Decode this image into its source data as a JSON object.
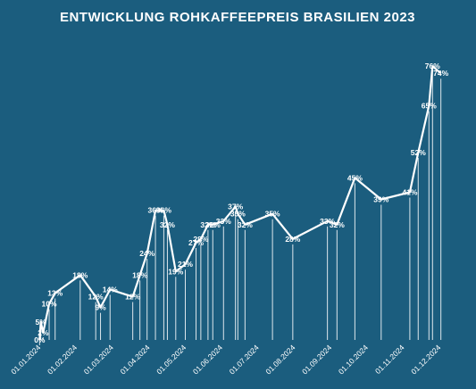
{
  "title": "ENTWICKLUNG ROHKAFFEEPREIS BRASILIEN 2023",
  "colors": {
    "background": "#1b5d7e",
    "line": "#ffffff",
    "text": "#ffffff"
  },
  "chart_data": {
    "type": "line",
    "title": "ENTWICKLUNG ROHKAFFEEPREIS BRASILIEN 2023",
    "xlabel": "",
    "ylabel": "",
    "ylim": [
      0,
      80
    ],
    "grid": false,
    "legend": "none",
    "x_tick_labels": [
      "01.01.2024",
      "01.02.2024",
      "01.03.2024",
      "01.04.2024",
      "01.05.2024",
      "01.06.2024",
      "01.07.2024",
      "01.08.2024",
      "01.09.2024",
      "01.10.2024",
      "01.11.2024",
      "01.12.2024"
    ],
    "points": [
      {
        "date": "2024-01-02",
        "value": 0,
        "label": "0%"
      },
      {
        "date": "2024-01-03",
        "value": 5,
        "label": "5%"
      },
      {
        "date": "2024-01-05",
        "value": 2,
        "label": "2%"
      },
      {
        "date": "2024-01-10",
        "value": 10,
        "label": "10%"
      },
      {
        "date": "2024-01-15",
        "value": 13,
        "label": "13%"
      },
      {
        "date": "2024-02-05",
        "value": 18,
        "label": "18%"
      },
      {
        "date": "2024-02-18",
        "value": 12,
        "label": "12%"
      },
      {
        "date": "2024-02-22",
        "value": 9,
        "label": "9%"
      },
      {
        "date": "2024-03-01",
        "value": 14,
        "label": "14%"
      },
      {
        "date": "2024-03-20",
        "value": 12,
        "label": "12%"
      },
      {
        "date": "2024-03-26",
        "value": 18,
        "label": "18%"
      },
      {
        "date": "2024-04-01",
        "value": 24,
        "label": "24%"
      },
      {
        "date": "2024-04-08",
        "value": 36,
        "label": "36%"
      },
      {
        "date": "2024-04-15",
        "value": 36,
        "label": "36%"
      },
      {
        "date": "2024-04-18",
        "value": 32,
        "label": "32%"
      },
      {
        "date": "2024-04-25",
        "value": 19,
        "label": "19%"
      },
      {
        "date": "2024-05-03",
        "value": 21,
        "label": "21%"
      },
      {
        "date": "2024-05-12",
        "value": 27,
        "label": "27%"
      },
      {
        "date": "2024-05-16",
        "value": 28,
        "label": "28%"
      },
      {
        "date": "2024-05-22",
        "value": 32,
        "label": "32%"
      },
      {
        "date": "2024-05-26",
        "value": 32,
        "label": "32%"
      },
      {
        "date": "2024-06-04",
        "value": 33,
        "label": "33%"
      },
      {
        "date": "2024-06-14",
        "value": 37,
        "label": "37%"
      },
      {
        "date": "2024-06-16",
        "value": 35,
        "label": "35%"
      },
      {
        "date": "2024-06-22",
        "value": 32,
        "label": "32%"
      },
      {
        "date": "2024-07-15",
        "value": 35,
        "label": "35%"
      },
      {
        "date": "2024-08-01",
        "value": 28,
        "label": "28%"
      },
      {
        "date": "2024-08-30",
        "value": 33,
        "label": "33%"
      },
      {
        "date": "2024-09-07",
        "value": 32,
        "label": "32%"
      },
      {
        "date": "2024-09-22",
        "value": 45,
        "label": "45%"
      },
      {
        "date": "2024-10-14",
        "value": 39,
        "label": "39%"
      },
      {
        "date": "2024-11-07",
        "value": 41,
        "label": "41%"
      },
      {
        "date": "2024-11-14",
        "value": 52,
        "label": "52%"
      },
      {
        "date": "2024-11-23",
        "value": 65,
        "label": "65%"
      },
      {
        "date": "2024-11-26",
        "value": 76,
        "label": "76%"
      },
      {
        "date": "2024-12-03",
        "value": 74,
        "label": "74%"
      }
    ]
  }
}
